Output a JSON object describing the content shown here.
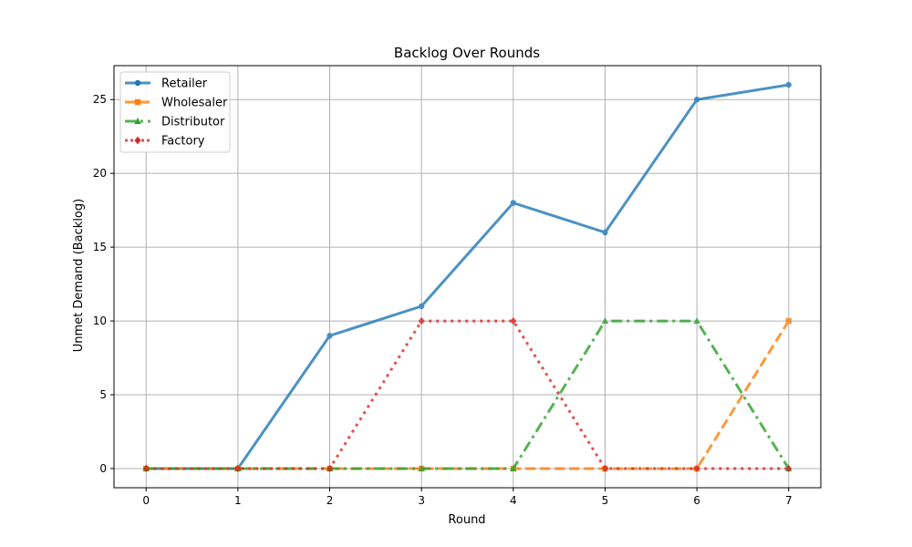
{
  "chart_data": {
    "type": "line",
    "title": "Backlog Over Rounds",
    "xlabel": "Round",
    "ylabel": "Unmet Demand (Backlog)",
    "x": [
      0,
      1,
      2,
      3,
      4,
      5,
      6,
      7
    ],
    "xlim": [
      -0.35,
      7.35
    ],
    "ylim": [
      -1.3,
      27.3
    ],
    "xticks": [
      0,
      1,
      2,
      3,
      4,
      5,
      6,
      7
    ],
    "yticks": [
      0,
      5,
      10,
      15,
      20,
      25
    ],
    "grid": true,
    "legend_position": "top-left",
    "series": [
      {
        "name": "Retailer",
        "values": [
          0,
          0,
          9,
          11,
          18,
          16,
          25,
          26
        ],
        "color": "#1f77b4",
        "marker": "circle",
        "dash": "solid"
      },
      {
        "name": "Wholesaler",
        "values": [
          0,
          0,
          0,
          0,
          0,
          0,
          0,
          10
        ],
        "color": "#ff7f0e",
        "marker": "square",
        "dash": "dashed"
      },
      {
        "name": "Distributor",
        "values": [
          0,
          0,
          0,
          0,
          0,
          10,
          10,
          0
        ],
        "color": "#2ca02c",
        "marker": "triangle",
        "dash": "dashdot"
      },
      {
        "name": "Factory",
        "values": [
          0,
          0,
          0,
          10,
          10,
          0,
          0,
          0
        ],
        "color": "#d62728",
        "marker": "diamond",
        "dash": "dotted"
      }
    ]
  }
}
